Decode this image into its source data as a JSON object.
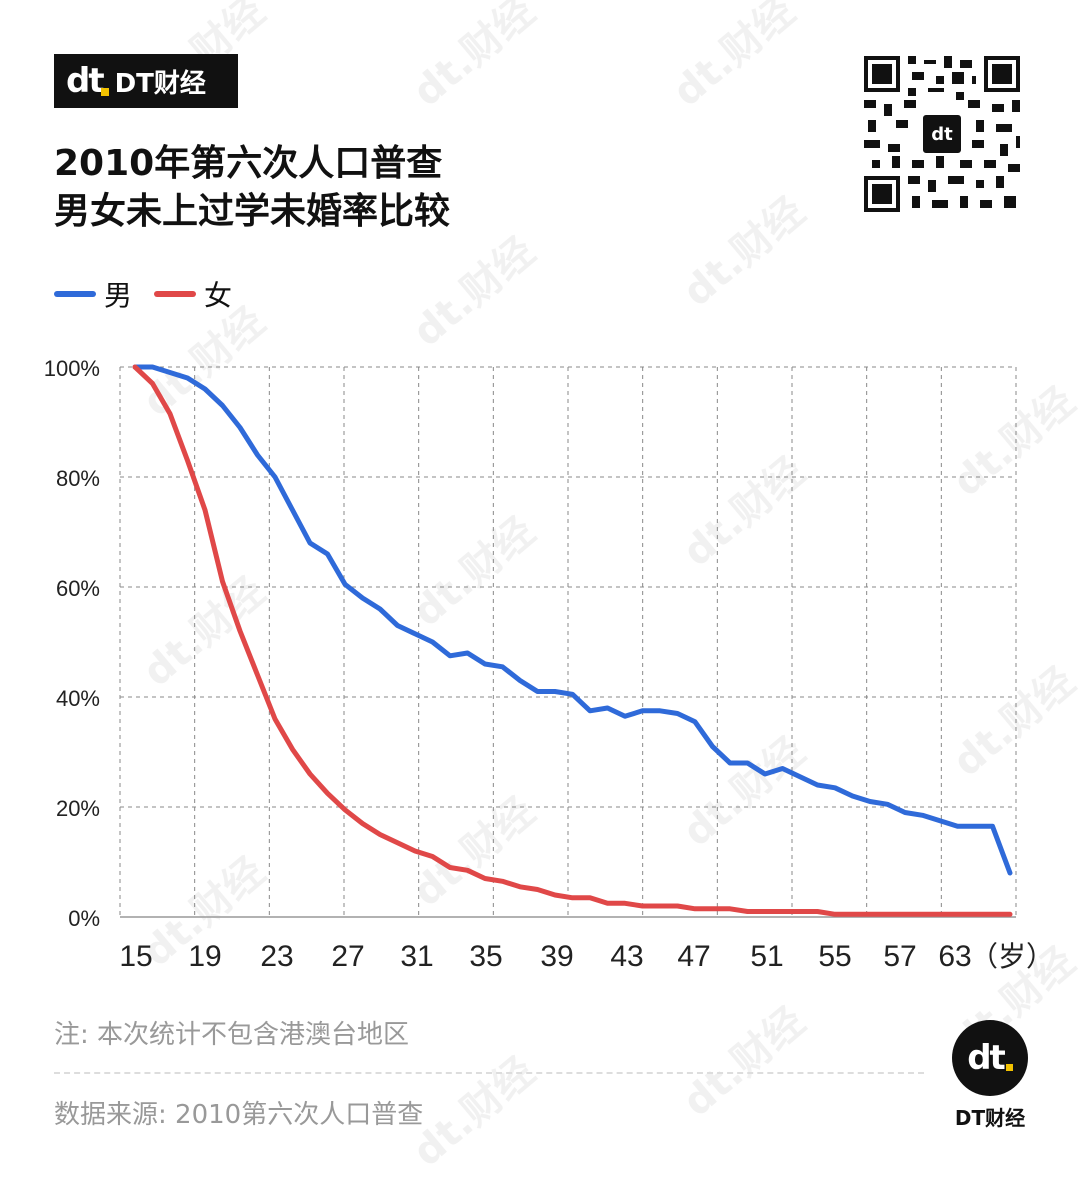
{
  "brand": {
    "logo_text": "dt",
    "name": "DT财经"
  },
  "title": {
    "line1": "2010年第六次人口普查",
    "line2": "男女未上过学未婚率比较"
  },
  "legend": [
    {
      "label": "男",
      "color": "#2f6ad9"
    },
    {
      "label": "女",
      "color": "#e04848"
    }
  ],
  "note": "注: 本次统计不包含港澳台地区",
  "source": "数据来源: 2010第六次人口普查",
  "corner_logo": {
    "logo_text": "dt",
    "name": "DT财经"
  },
  "watermark_text": "dt.财经",
  "chart_data": {
    "type": "line",
    "title": "2010年第六次人口普查 男女未上过学未婚率比较",
    "xlabel": "（岁）",
    "ylabel": "",
    "ylim": [
      0,
      100
    ],
    "y_ticks": [
      0,
      20,
      40,
      60,
      80,
      100
    ],
    "y_tick_labels": [
      "0%",
      "20%",
      "40%",
      "60%",
      "80%",
      "100%"
    ],
    "x_tick_labels": [
      "15",
      "19",
      "23",
      "27",
      "31",
      "35",
      "39",
      "43",
      "47",
      "51",
      "55",
      "57",
      "63"
    ],
    "x_unit_label": "（岁）",
    "point_count": 51,
    "grid": true,
    "legend_position": "top-left",
    "series": [
      {
        "name": "男",
        "color": "#2f6ad9",
        "values": [
          100,
          100,
          99,
          98,
          96,
          93,
          89,
          84,
          80,
          74,
          68,
          66,
          60.5,
          58,
          56,
          53,
          51.5,
          50,
          47.5,
          48,
          46,
          45.5,
          43,
          41,
          41,
          40.5,
          37.5,
          38,
          36.5,
          37.5,
          37.5,
          37,
          35.5,
          31,
          28,
          28,
          26,
          27,
          25.5,
          24,
          23.5,
          22,
          21,
          20.5,
          19,
          18.5,
          17.5,
          16.5,
          16.5,
          16.5,
          8
        ]
      },
      {
        "name": "女",
        "color": "#e04848",
        "values": [
          100,
          97,
          91.5,
          83,
          74,
          61,
          52,
          44,
          36,
          30.5,
          26,
          22.5,
          19.5,
          17,
          15,
          13.5,
          12,
          11,
          9,
          8.5,
          7,
          6.5,
          5.5,
          5,
          4,
          3.5,
          3.5,
          2.5,
          2.5,
          2,
          2,
          2,
          1.5,
          1.5,
          1.5,
          1,
          1,
          1,
          1,
          1,
          0.5,
          0.5,
          0.5,
          0.5,
          0.5,
          0.5,
          0.5,
          0.5,
          0.5,
          0.5,
          0.5
        ]
      }
    ]
  }
}
